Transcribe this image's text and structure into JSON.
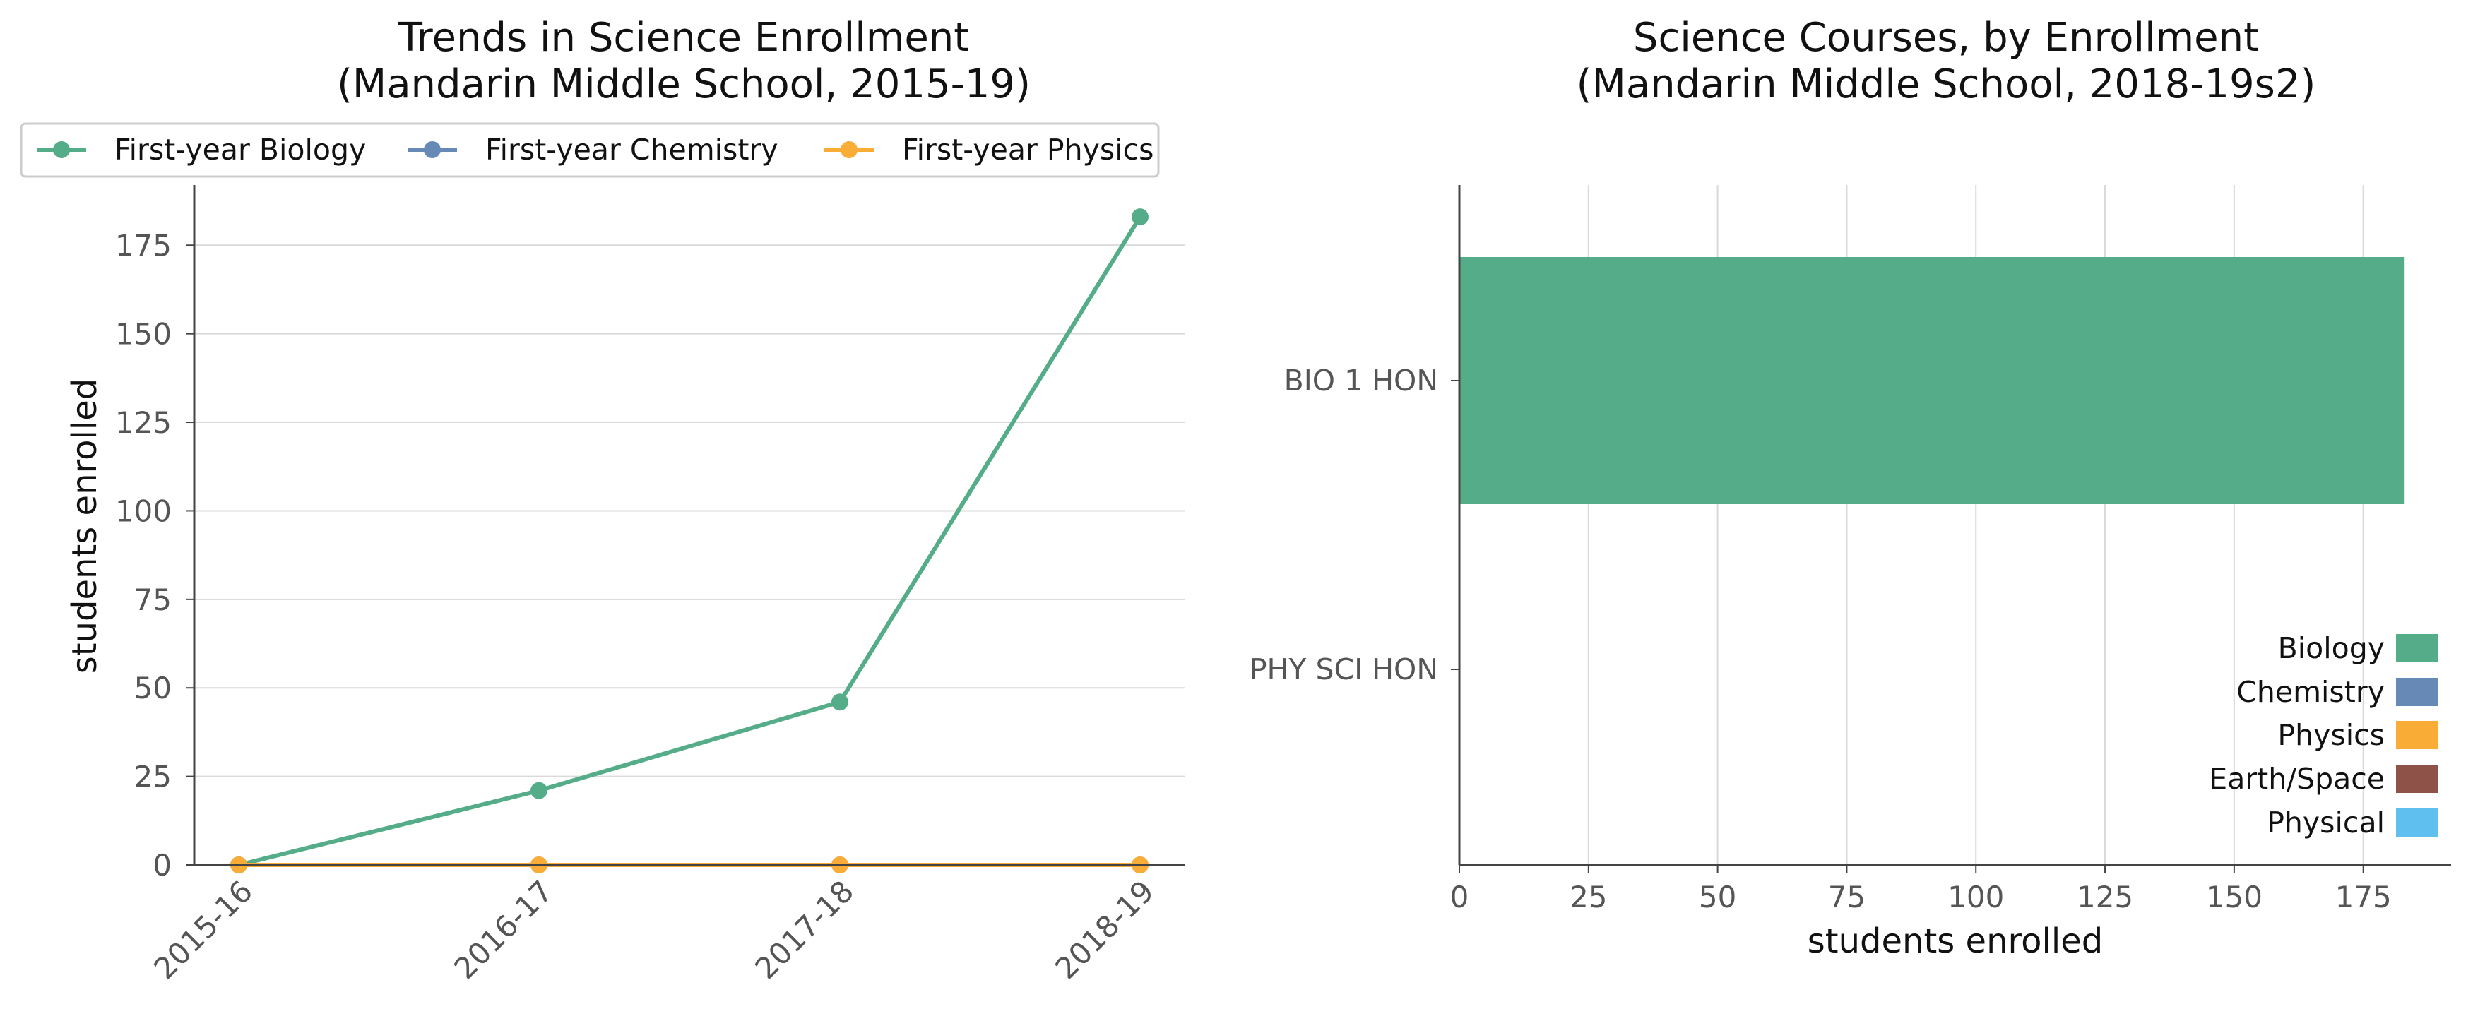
{
  "colors": {
    "Biology": "#55ac88",
    "Chemistry": "#6789b6",
    "Physics": "#f9ac36",
    "Earth/Space": "#8e5248",
    "Physical": "#5fc0ef",
    "grid": "#d9d9d9",
    "axis": "#444444"
  },
  "chart_data": [
    {
      "type": "line",
      "title_line1": "Trends in Science Enrollment",
      "title_line2": "(Mandarin Middle School, 2015-19)",
      "xlabel": "",
      "ylabel": "students enrolled",
      "categories": [
        "2015-16",
        "2016-17",
        "2017-18",
        "2018-19"
      ],
      "ylim": [
        0,
        192
      ],
      "yticks": [
        0,
        25,
        50,
        75,
        100,
        125,
        150,
        175
      ],
      "grid": "horizontal",
      "legend_position": "top",
      "series": [
        {
          "name": "First-year Biology",
          "color_key": "Biology",
          "values": [
            0,
            21,
            46,
            183
          ]
        },
        {
          "name": "First-year Chemistry",
          "color_key": "Chemistry",
          "values": [
            0,
            0,
            0,
            0
          ]
        },
        {
          "name": "First-year Physics",
          "color_key": "Physics",
          "values": [
            0,
            0,
            0,
            0
          ]
        }
      ]
    },
    {
      "type": "bar",
      "orientation": "horizontal",
      "title_line1": "Science Courses, by Enrollment",
      "title_line2": "(Mandarin Middle School, 2018-19s2)",
      "xlabel": "students enrolled",
      "ylabel": "",
      "categories": [
        "BIO 1 HON",
        "PHY SCI HON"
      ],
      "values": [
        183,
        0
      ],
      "bar_colors": [
        "Biology",
        "Physical"
      ],
      "xlim": [
        0,
        192
      ],
      "xticks": [
        0,
        25,
        50,
        75,
        100,
        125,
        150,
        175
      ],
      "grid": "vertical",
      "legend_position": "lower right",
      "legend": [
        "Biology",
        "Chemistry",
        "Physics",
        "Earth/Space",
        "Physical"
      ]
    }
  ]
}
